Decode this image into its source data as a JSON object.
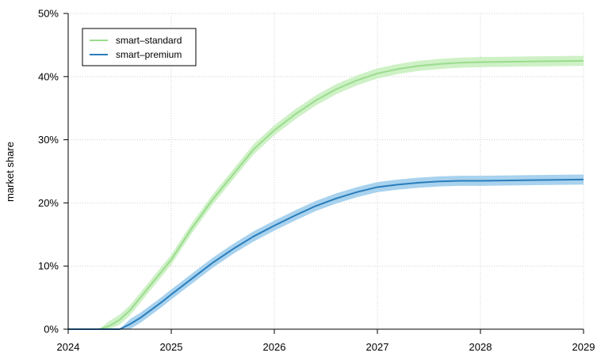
{
  "chart_data": {
    "type": "line",
    "title": "",
    "xlabel": "",
    "ylabel": "market share",
    "xlim": [
      2024,
      2029
    ],
    "ylim": [
      0,
      0.5
    ],
    "x_ticks": [
      "2024",
      "2025",
      "2026",
      "2027",
      "2028",
      "2029"
    ],
    "y_ticks": [
      "0%",
      "10%",
      "20%",
      "30%",
      "40%",
      "50%"
    ],
    "grid": true,
    "legend_position": "top-left",
    "series": [
      {
        "name": "smart–standard",
        "color": "#9bdc8e",
        "band_color": "#c9efc0",
        "band_halfwidth": 0.008,
        "x": [
          2024.0,
          2024.2,
          2024.3,
          2024.4,
          2024.5,
          2024.6,
          2024.7,
          2024.8,
          2024.9,
          2025.0,
          2025.2,
          2025.4,
          2025.6,
          2025.8,
          2026.0,
          2026.2,
          2026.4,
          2026.6,
          2026.8,
          2027.0,
          2027.2,
          2027.4,
          2027.6,
          2027.8,
          2028.0,
          2028.5,
          2029.0
        ],
        "values": [
          0.0,
          0.0,
          0.0,
          0.005,
          0.015,
          0.03,
          0.05,
          0.07,
          0.09,
          0.11,
          0.16,
          0.205,
          0.245,
          0.285,
          0.315,
          0.34,
          0.362,
          0.38,
          0.394,
          0.405,
          0.412,
          0.417,
          0.42,
          0.422,
          0.423,
          0.424,
          0.425
        ]
      },
      {
        "name": "smart–premium",
        "color": "#2a7dbb",
        "band_color": "#9fcdec",
        "band_halfwidth": 0.008,
        "x": [
          2024.0,
          2024.3,
          2024.5,
          2024.6,
          2024.7,
          2024.8,
          2024.9,
          2025.0,
          2025.2,
          2025.4,
          2025.6,
          2025.8,
          2026.0,
          2026.2,
          2026.4,
          2026.6,
          2026.8,
          2027.0,
          2027.2,
          2027.4,
          2027.6,
          2027.8,
          2028.0,
          2028.5,
          2029.0
        ],
        "values": [
          0.0,
          0.0,
          0.0,
          0.008,
          0.018,
          0.03,
          0.042,
          0.055,
          0.08,
          0.105,
          0.127,
          0.147,
          0.164,
          0.18,
          0.195,
          0.207,
          0.217,
          0.225,
          0.229,
          0.232,
          0.234,
          0.235,
          0.235,
          0.236,
          0.237
        ]
      }
    ]
  }
}
